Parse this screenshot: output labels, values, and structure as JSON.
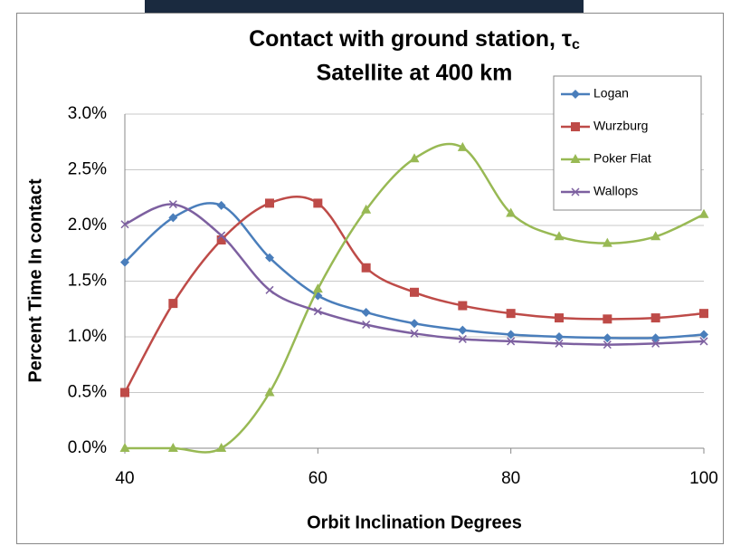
{
  "chart_data": {
    "type": "line",
    "title": "Contact with ground station, τ",
    "title_subscript": "c",
    "subtitle": "Satellite at 400 km",
    "x_label": "Orbit Inclination Degrees",
    "y_label": "Percent Time In contact",
    "x": [
      40,
      45,
      50,
      55,
      60,
      65,
      70,
      75,
      80,
      85,
      90,
      95,
      100
    ],
    "xlim": [
      40,
      100
    ],
    "xticks": [
      40,
      60,
      80,
      100
    ],
    "ylim": [
      0,
      3
    ],
    "yticks": [
      {
        "value": 0,
        "label": "0.0%"
      },
      {
        "value": 0.5,
        "label": "0.5%"
      },
      {
        "value": 1,
        "label": "1.0%"
      },
      {
        "value": 1.5,
        "label": "1.5%"
      },
      {
        "value": 2,
        "label": "2.0%"
      },
      {
        "value": 2.5,
        "label": "2.5%"
      },
      {
        "value": 3,
        "label": "3.0%"
      }
    ],
    "grid": true,
    "smooth": true,
    "legend": "top-right",
    "series": [
      {
        "name": "Logan",
        "color": "#4a7ebb",
        "marker": "diamond",
        "values": [
          1.67,
          2.07,
          2.18,
          1.71,
          1.37,
          1.22,
          1.12,
          1.06,
          1.02,
          1.0,
          0.99,
          0.99,
          1.02
        ]
      },
      {
        "name": "Wurzburg",
        "color": "#be4b48",
        "marker": "square",
        "values": [
          0.5,
          1.3,
          1.87,
          2.2,
          2.2,
          1.62,
          1.4,
          1.28,
          1.21,
          1.17,
          1.16,
          1.17,
          1.21
        ]
      },
      {
        "name": "Poker Flat",
        "color": "#98b954",
        "marker": "triangle",
        "values": [
          0,
          0,
          0,
          0.5,
          1.43,
          2.14,
          2.6,
          2.7,
          2.11,
          1.9,
          1.84,
          1.9,
          2.1
        ]
      },
      {
        "name": "Wallops",
        "color": "#7d60a0",
        "marker": "x",
        "values": [
          2.01,
          2.19,
          1.91,
          1.42,
          1.23,
          1.11,
          1.03,
          0.98,
          0.96,
          0.94,
          0.93,
          0.94,
          0.96
        ]
      }
    ]
  }
}
